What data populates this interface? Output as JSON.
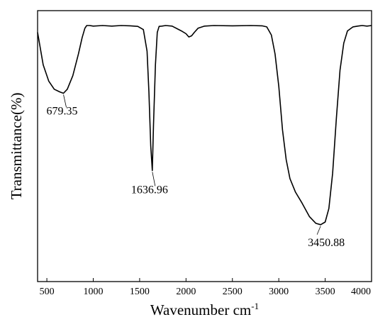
{
  "chart_data": {
    "type": "line",
    "title": "",
    "xlabel": "Wavenumber cm",
    "xlabel_sup": "-1",
    "ylabel": "Transmittance(%)",
    "xlim": [
      400,
      4000
    ],
    "ylim": [
      0,
      100
    ],
    "x_ticks": [
      500,
      1000,
      1500,
      2000,
      2500,
      3000,
      3500,
      4000
    ],
    "y_ticks_shown": false,
    "grid": false,
    "legend": "none",
    "line_color": "#000000",
    "series": [
      {
        "x": [
          400,
          420,
          460,
          520,
          580,
          640,
          679.35,
          720,
          780,
          840,
          880,
          910,
          930,
          960,
          1000,
          1100,
          1200,
          1300,
          1400,
          1480,
          1540,
          1580,
          1600,
          1620,
          1636.96,
          1650,
          1670,
          1690,
          1710,
          1740,
          1780,
          1850,
          1950,
          2000,
          2030,
          2060,
          2090,
          2130,
          2200,
          2300,
          2500,
          2700,
          2820,
          2870,
          2920,
          2960,
          3000,
          3040,
          3080,
          3120,
          3180,
          3250,
          3330,
          3400,
          3450.88,
          3500,
          3540,
          3580,
          3620,
          3660,
          3700,
          3740,
          3800,
          3850,
          3900,
          3950,
          4000
        ],
        "y": [
          92,
          88,
          80,
          74,
          71,
          70,
          69.5,
          71,
          76,
          84,
          90,
          93.5,
          94.5,
          94.5,
          94.3,
          94.5,
          94.3,
          94.5,
          94.4,
          94.2,
          93,
          85,
          70,
          50,
          41,
          58,
          80,
          92,
          94.2,
          94.3,
          94.5,
          94.3,
          92.5,
          91.5,
          90.3,
          90.7,
          92,
          93.5,
          94.3,
          94.5,
          94.4,
          94.5,
          94.4,
          94,
          91,
          84,
          72,
          56,
          45,
          38,
          33,
          29,
          24,
          21.5,
          21,
          22,
          27,
          40,
          60,
          78,
          88,
          92.5,
          94,
          94.3,
          94.5,
          94.3,
          94.5
        ]
      }
    ],
    "annotations": [
      {
        "text": "679.35",
        "x": 679.35,
        "y": 69.5
      },
      {
        "text": "1636.96",
        "x": 1636.96,
        "y": 41
      },
      {
        "text": "3450.88",
        "x": 3450.88,
        "y": 21
      }
    ]
  }
}
